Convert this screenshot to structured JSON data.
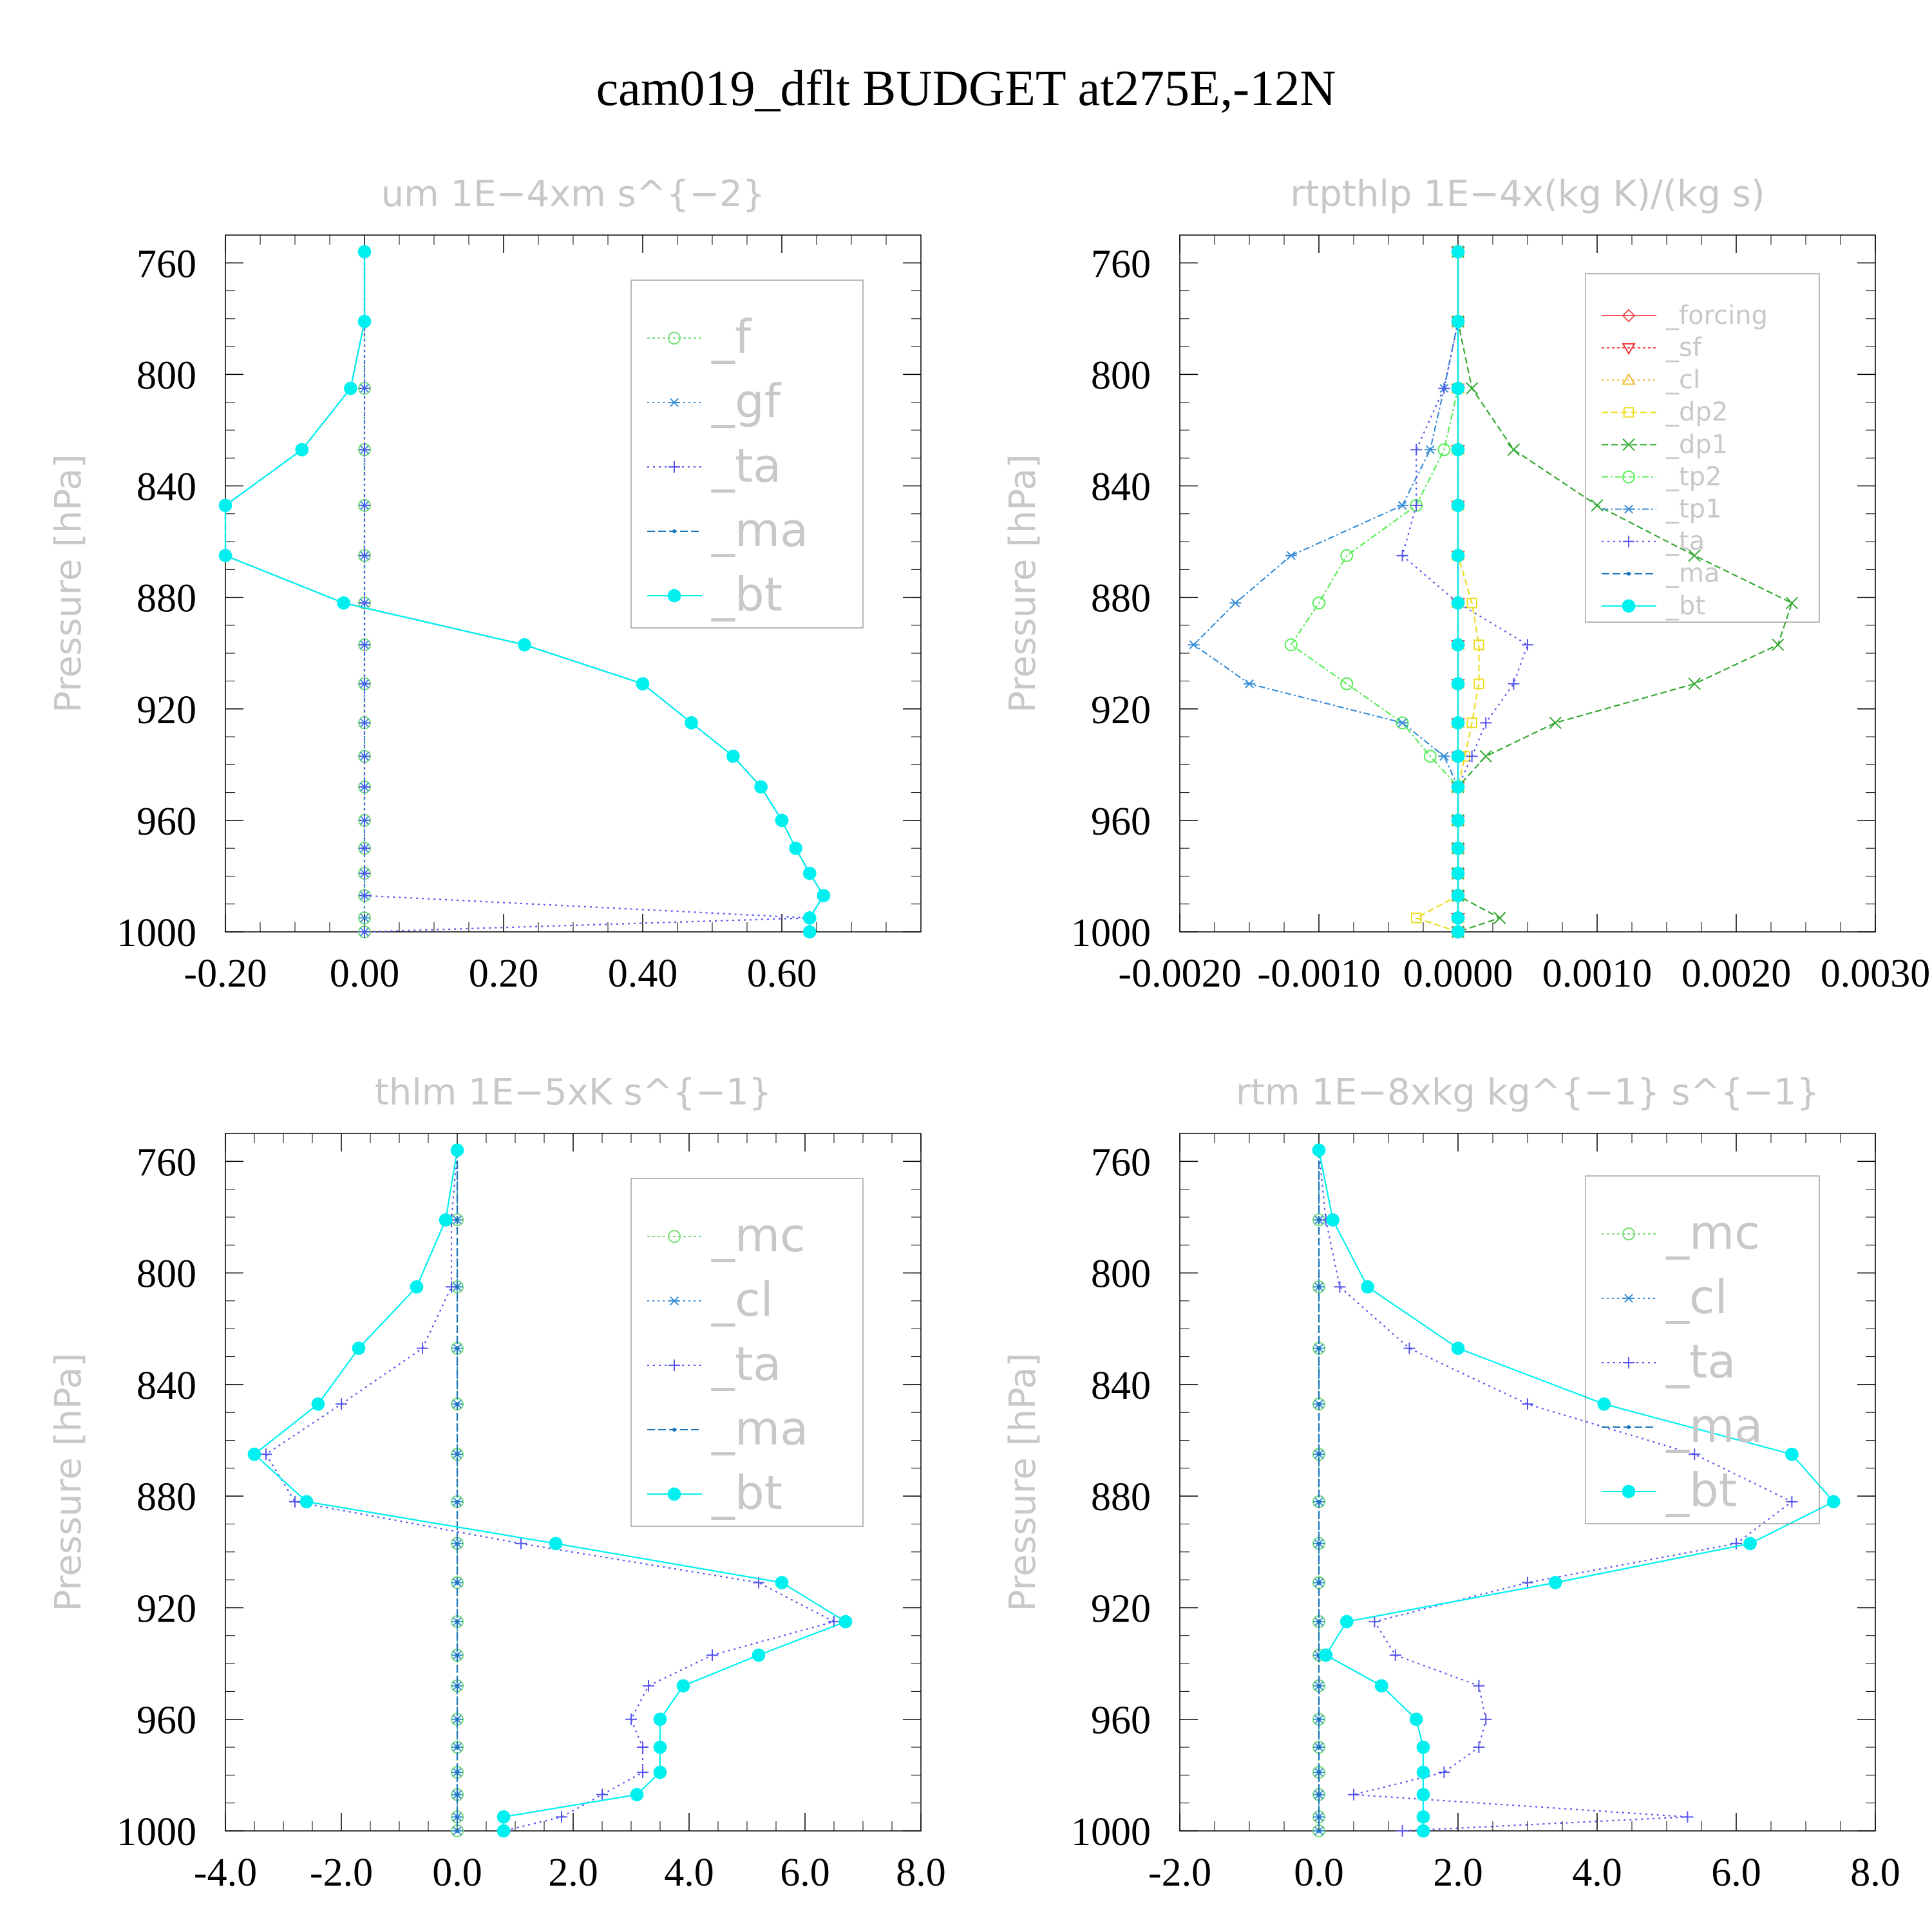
{
  "page": {
    "title": "cam019_dflt  BUDGET at275E,-12N"
  },
  "chart_data": [
    {
      "type": "line",
      "title": "um  1E−4xm s^{−2}",
      "ylabel": "Pressure [hPa]",
      "xlabel": "",
      "xlim": [
        -0.2,
        0.8
      ],
      "ylim": [
        750,
        1000
      ],
      "xticks": [
        -0.2,
        0.0,
        0.2,
        0.4,
        0.6
      ],
      "xtick_labels": [
        "-0.20",
        "0.00",
        "0.20",
        "0.40",
        "0.60"
      ],
      "yticks": [
        760,
        800,
        840,
        880,
        920,
        960,
        1000
      ],
      "ytick_labels": [
        "760",
        "800",
        "840",
        "880",
        "920",
        "960",
        "1000"
      ],
      "grid": false,
      "legend": "upper-right",
      "legend_font": 72,
      "levels": [
        756,
        781,
        805,
        827,
        847,
        865,
        882,
        897,
        911,
        925,
        937,
        948,
        960,
        970,
        979,
        987,
        995,
        1000
      ],
      "series": [
        {
          "name": "_f",
          "color": "#77dd77",
          "marker": "circle-open",
          "dash": "4,4",
          "values": [
            0,
            0,
            0,
            0,
            0,
            0,
            0,
            0,
            0,
            0,
            0,
            0,
            0,
            0,
            0,
            0,
            0,
            0
          ]
        },
        {
          "name": "_gf",
          "color": "#3a8fd8",
          "marker": "star",
          "dash": "3,5",
          "values": [
            0,
            0,
            0,
            0,
            0,
            0,
            0,
            0,
            0,
            0,
            0,
            0,
            0,
            0,
            0,
            0,
            0,
            0
          ]
        },
        {
          "name": "_ta",
          "color": "#5555ee",
          "marker": "plus",
          "dash": "3,6",
          "values": [
            0,
            0,
            0,
            0,
            0,
            0,
            0,
            0,
            0,
            0,
            0,
            0,
            0,
            0,
            0,
            0,
            0.64,
            0
          ]
        },
        {
          "name": "_ma",
          "color": "#1a75bb",
          "marker": "dot",
          "dash": "12,5",
          "values": [
            0,
            0,
            -0.02,
            -0.09,
            -0.2,
            -0.2,
            -0.03,
            0.23,
            0.4,
            0.47,
            0.53,
            0.57,
            0.6,
            0.62,
            0.64,
            0.66,
            0.64,
            0.64
          ]
        },
        {
          "name": "_bt",
          "color": "#00f0f0",
          "marker": "disc",
          "dash": "",
          "values": [
            0,
            0,
            -0.02,
            -0.09,
            -0.2,
            -0.2,
            -0.03,
            0.23,
            0.4,
            0.47,
            0.53,
            0.57,
            0.6,
            0.62,
            0.64,
            0.66,
            0.64,
            0.64
          ]
        }
      ]
    },
    {
      "type": "line",
      "title": "rtpthlp   1E−4x(kg K)/(kg s)",
      "ylabel": "Pressure [hPa]",
      "xlabel": "",
      "xlim": [
        -0.002,
        0.003
      ],
      "ylim": [
        750,
        1000
      ],
      "xticks": [
        -0.002,
        -0.001,
        0,
        0.001,
        0.002,
        0.003
      ],
      "xtick_labels": [
        "-0.0020",
        "-0.0010",
        "0.0000",
        "0.0010",
        "0.0020",
        "0.0030"
      ],
      "yticks": [
        760,
        800,
        840,
        880,
        920,
        960,
        1000
      ],
      "ytick_labels": [
        "760",
        "800",
        "840",
        "880",
        "920",
        "960",
        "1000"
      ],
      "grid": false,
      "legend": "upper-right",
      "legend_font": 40,
      "levels": [
        756,
        781,
        805,
        827,
        847,
        865,
        882,
        897,
        911,
        925,
        937,
        948,
        960,
        970,
        979,
        987,
        995,
        1000
      ],
      "series": [
        {
          "name": "_forcing",
          "color": "#ee5555",
          "marker": "diamond",
          "dash": "",
          "values": [
            0,
            0,
            0,
            0,
            0,
            0,
            0,
            0,
            0,
            0,
            0,
            0,
            0,
            0,
            0,
            0,
            0,
            0
          ]
        },
        {
          "name": "_sf",
          "color": "#ee3333",
          "marker": "tri-down",
          "dash": "4,4",
          "values": [
            0,
            0,
            0,
            0,
            0,
            0,
            0,
            0,
            0,
            0,
            0,
            0,
            0,
            0,
            0,
            0,
            0,
            0
          ]
        },
        {
          "name": "_cl",
          "color": "#eebb33",
          "marker": "tri-up",
          "dash": "3,5",
          "values": [
            0,
            0,
            0,
            0,
            0,
            0,
            0,
            0,
            0,
            0,
            0,
            0,
            0,
            0,
            0,
            0,
            0,
            0
          ]
        },
        {
          "name": "_dp2",
          "color": "#eedd22",
          "marker": "square",
          "dash": "10,5",
          "values": [
            0,
            0,
            0,
            0,
            0,
            0,
            0.0001,
            0.00015,
            0.00015,
            0.0001,
            5e-05,
            0,
            0,
            0,
            0,
            0,
            -0.0003,
            0
          ]
        },
        {
          "name": "_dp1",
          "color": "#33aa33",
          "marker": "cross",
          "dash": "10,5",
          "values": [
            0,
            0,
            0.0001,
            0.0004,
            0.001,
            0.0017,
            0.0024,
            0.0023,
            0.0017,
            0.0007,
            0.0002,
            0,
            0,
            0,
            0,
            0,
            0.0003,
            0
          ]
        },
        {
          "name": "_tp2",
          "color": "#55ee55",
          "marker": "circle-open",
          "dash": "10,4,3,4",
          "values": [
            0,
            0,
            0,
            -0.0001,
            -0.0003,
            -0.0008,
            -0.001,
            -0.0012,
            -0.0008,
            -0.0004,
            -0.0002,
            0,
            0,
            0,
            0,
            0,
            0,
            0
          ]
        },
        {
          "name": "_tp1",
          "color": "#3a8fd8",
          "marker": "star",
          "dash": "10,4,3,4",
          "values": [
            0,
            0,
            -0.0001,
            -0.0002,
            -0.0004,
            -0.0012,
            -0.0016,
            -0.0019,
            -0.0015,
            -0.0004,
            -0.0001,
            0,
            0,
            0,
            0,
            0,
            0,
            0
          ]
        },
        {
          "name": "_ta",
          "color": "#5555ee",
          "marker": "plus",
          "dash": "3,6",
          "values": [
            0,
            0,
            -0.0001,
            -0.0003,
            -0.0003,
            -0.0004,
            0,
            0.0005,
            0.0004,
            0.0002,
            0.0001,
            0,
            0,
            0,
            0,
            0,
            0,
            0
          ]
        },
        {
          "name": "_ma",
          "color": "#1a75bb",
          "marker": "dot",
          "dash": "12,5",
          "values": [
            0,
            0,
            0,
            0,
            0,
            0,
            0,
            0,
            0,
            0,
            0,
            0,
            0,
            0,
            0,
            0,
            0,
            0
          ]
        },
        {
          "name": "_bt",
          "color": "#00f0f0",
          "marker": "disc",
          "dash": "",
          "values": [
            0,
            0,
            0,
            0,
            0,
            0,
            0,
            0,
            0,
            0,
            0,
            0,
            0,
            0,
            0,
            0,
            0,
            0
          ]
        }
      ]
    },
    {
      "type": "line",
      "title": "thlm  1E−5xK s^{−1}",
      "ylabel": "Pressure [hPa]",
      "xlabel": "",
      "xlim": [
        -4.0,
        8.0
      ],
      "ylim": [
        750,
        1000
      ],
      "xticks": [
        -4,
        -2,
        0,
        2,
        4,
        6,
        8
      ],
      "xtick_labels": [
        "-4.0",
        "-2.0",
        "0.0",
        "2.0",
        "4.0",
        "6.0",
        "8.0"
      ],
      "yticks": [
        760,
        800,
        840,
        880,
        920,
        960,
        1000
      ],
      "ytick_labels": [
        "760",
        "800",
        "840",
        "880",
        "920",
        "960",
        "1000"
      ],
      "grid": false,
      "legend": "upper-right",
      "legend_font": 72,
      "levels": [
        756,
        781,
        805,
        827,
        847,
        865,
        882,
        897,
        911,
        925,
        937,
        948,
        960,
        970,
        979,
        987,
        995,
        1000
      ],
      "series": [
        {
          "name": "_mc",
          "color": "#77dd77",
          "marker": "circle-open",
          "dash": "4,4",
          "values": [
            0,
            0,
            0,
            0,
            0,
            0,
            0,
            0,
            0,
            0,
            0,
            0,
            0,
            0,
            0,
            0,
            0,
            0
          ]
        },
        {
          "name": "_cl",
          "color": "#3a8fd8",
          "marker": "star",
          "dash": "3,5",
          "values": [
            0,
            0,
            0,
            0,
            0,
            0,
            0,
            0,
            0,
            0,
            0,
            0,
            0,
            0,
            0,
            0,
            0,
            0
          ]
        },
        {
          "name": "_ta",
          "color": "#5555ee",
          "marker": "plus",
          "dash": "3,6",
          "values": [
            0,
            -0.1,
            -0.1,
            -0.6,
            -2.0,
            -3.3,
            -2.8,
            1.1,
            5.2,
            6.5,
            4.4,
            3.3,
            3.0,
            3.2,
            3.2,
            2.5,
            1.8,
            0.8
          ]
        },
        {
          "name": "_ma",
          "color": "#1a75bb",
          "marker": "dot",
          "dash": "12,5",
          "values": [
            0,
            0,
            0,
            0,
            0,
            0,
            0,
            0,
            0,
            0,
            0,
            0,
            0,
            0,
            0,
            0,
            0,
            0
          ]
        },
        {
          "name": "_bt",
          "color": "#00f0f0",
          "marker": "disc",
          "dash": "",
          "values": [
            0,
            -0.2,
            -0.7,
            -1.7,
            -2.4,
            -3.5,
            -2.6,
            1.7,
            5.6,
            6.7,
            5.2,
            3.9,
            3.5,
            3.5,
            3.5,
            3.1,
            0.8,
            0.8
          ]
        }
      ]
    },
    {
      "type": "line",
      "title": "rtm  1E−8xkg kg^{−1} s^{−1}",
      "ylabel": "Pressure [hPa]",
      "xlabel": "",
      "xlim": [
        -2.0,
        8.0
      ],
      "ylim": [
        750,
        1000
      ],
      "xticks": [
        -2,
        0,
        2,
        4,
        6,
        8
      ],
      "xtick_labels": [
        "-2.0",
        "0.0",
        "2.0",
        "4.0",
        "6.0",
        "8.0"
      ],
      "yticks": [
        760,
        800,
        840,
        880,
        920,
        960,
        1000
      ],
      "ytick_labels": [
        "760",
        "800",
        "840",
        "880",
        "920",
        "960",
        "1000"
      ],
      "grid": false,
      "legend": "upper-right",
      "legend_font": 72,
      "levels": [
        756,
        781,
        805,
        827,
        847,
        865,
        882,
        897,
        911,
        925,
        937,
        948,
        960,
        970,
        979,
        987,
        995,
        1000
      ],
      "series": [
        {
          "name": "_mc",
          "color": "#77dd77",
          "marker": "circle-open",
          "dash": "4,4",
          "values": [
            0,
            0,
            0,
            0,
            0,
            0,
            0,
            0,
            0,
            0,
            0,
            0,
            0,
            0,
            0,
            0,
            0,
            0
          ]
        },
        {
          "name": "_cl",
          "color": "#3a8fd8",
          "marker": "star",
          "dash": "3,5",
          "values": [
            0,
            0,
            0,
            0,
            0,
            0,
            0,
            0,
            0,
            0,
            0,
            0,
            0,
            0,
            0,
            0,
            0,
            0
          ]
        },
        {
          "name": "_ta",
          "color": "#5555ee",
          "marker": "plus",
          "dash": "3,6",
          "values": [
            0,
            0.1,
            0.3,
            1.3,
            3.0,
            5.4,
            6.8,
            6.0,
            3.0,
            0.8,
            1.1,
            2.3,
            2.4,
            2.3,
            1.8,
            0.5,
            5.3,
            1.2
          ]
        },
        {
          "name": "_ma",
          "color": "#1a75bb",
          "marker": "dot",
          "dash": "12,5",
          "values": [
            0,
            0,
            0,
            0,
            0,
            0,
            0,
            0,
            0,
            0,
            0,
            0,
            0,
            0,
            0,
            0,
            0,
            0
          ]
        },
        {
          "name": "_bt",
          "color": "#00f0f0",
          "marker": "disc",
          "dash": "",
          "values": [
            0,
            0.2,
            0.7,
            2.0,
            4.1,
            6.8,
            7.4,
            6.2,
            3.4,
            0.4,
            0.1,
            0.9,
            1.4,
            1.5,
            1.5,
            1.5,
            1.5,
            1.5
          ]
        }
      ]
    }
  ]
}
